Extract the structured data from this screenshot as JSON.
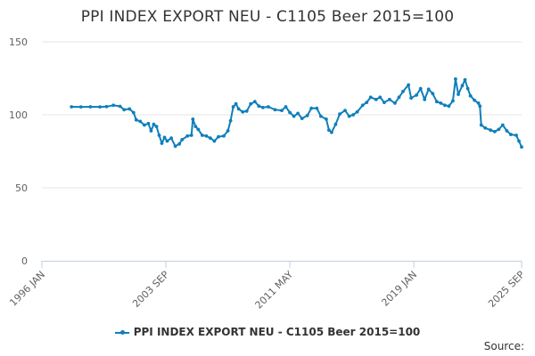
{
  "chart_data": {
    "type": "line",
    "title": "PPI INDEX EXPORT NEU - C1105 Beer 2015=100",
    "xlabel": "",
    "ylabel": "",
    "ylim": [
      0,
      150
    ],
    "yticks": [
      "0",
      "50",
      "100",
      "150"
    ],
    "xlim": [
      "1996-01",
      "2025-09"
    ],
    "xticks": [
      "1996 JAN",
      "2003 SEP",
      "2011 MAY",
      "2019 JAN",
      "2025 SEP"
    ],
    "grid": true,
    "legend_position": "bottom-center",
    "series": [
      {
        "name": "PPI INDEX EXPORT NEU - C1105 Beer 2015=100",
        "color": "#0f7fba",
        "points": [
          [
            "1997-11",
            105.5
          ],
          [
            "1998-06",
            105.4
          ],
          [
            "1999-01",
            105.5
          ],
          [
            "1999-08",
            105.4
          ],
          [
            "2000-01",
            105.6
          ],
          [
            "2000-06",
            106.5
          ],
          [
            "2000-11",
            105.8
          ],
          [
            "2001-02",
            103.5
          ],
          [
            "2001-06",
            104.0
          ],
          [
            "2001-09",
            101.5
          ],
          [
            "2001-11",
            96.5
          ],
          [
            "2002-02",
            95.5
          ],
          [
            "2002-05",
            93.0
          ],
          [
            "2002-08",
            94.0
          ],
          [
            "2002-10",
            89.0
          ],
          [
            "2002-12",
            93.5
          ],
          [
            "2003-02",
            92.0
          ],
          [
            "2003-04",
            86.0
          ],
          [
            "2003-06",
            80.5
          ],
          [
            "2003-08",
            84.5
          ],
          [
            "2003-10",
            82.0
          ],
          [
            "2004-01",
            84.0
          ],
          [
            "2004-04",
            78.5
          ],
          [
            "2004-07",
            80.0
          ],
          [
            "2004-09",
            83.0
          ],
          [
            "2005-01",
            85.5
          ],
          [
            "2005-04",
            86.0
          ],
          [
            "2005-05",
            97.0
          ],
          [
            "2005-07",
            92.0
          ],
          [
            "2005-09",
            90.0
          ],
          [
            "2005-12",
            86.0
          ],
          [
            "2006-03",
            85.5
          ],
          [
            "2006-06",
            84.0
          ],
          [
            "2006-09",
            82.0
          ],
          [
            "2006-12",
            85.0
          ],
          [
            "2007-04",
            85.5
          ],
          [
            "2007-07",
            89.0
          ],
          [
            "2007-09",
            96.0
          ],
          [
            "2007-11",
            105.5
          ],
          [
            "2008-01",
            107.5
          ],
          [
            "2008-03",
            104.0
          ],
          [
            "2008-06",
            102.0
          ],
          [
            "2008-09",
            102.5
          ],
          [
            "2008-12",
            107.5
          ],
          [
            "2009-03",
            109.0
          ],
          [
            "2009-06",
            106.0
          ],
          [
            "2009-09",
            105.0
          ],
          [
            "2010-01",
            105.5
          ],
          [
            "2010-06",
            103.5
          ],
          [
            "2010-11",
            103.0
          ],
          [
            "2011-02",
            105.5
          ],
          [
            "2011-05",
            101.5
          ],
          [
            "2011-08",
            99.0
          ],
          [
            "2011-11",
            101.0
          ],
          [
            "2012-02",
            97.5
          ],
          [
            "2012-06",
            99.5
          ],
          [
            "2012-09",
            104.5
          ],
          [
            "2013-01",
            104.5
          ],
          [
            "2013-04",
            99.0
          ],
          [
            "2013-08",
            97.0
          ],
          [
            "2013-10",
            89.5
          ],
          [
            "2013-12",
            88.0
          ],
          [
            "2014-03",
            93.5
          ],
          [
            "2014-06",
            100.5
          ],
          [
            "2014-10",
            103.0
          ],
          [
            "2015-01",
            99.0
          ],
          [
            "2015-04",
            100.0
          ],
          [
            "2015-07",
            102.0
          ],
          [
            "2015-11",
            106.5
          ],
          [
            "2016-02",
            108.5
          ],
          [
            "2016-05",
            112.0
          ],
          [
            "2016-09",
            110.5
          ],
          [
            "2016-12",
            112.0
          ],
          [
            "2017-03",
            108.5
          ],
          [
            "2017-07",
            110.5
          ],
          [
            "2017-11",
            108.0
          ],
          [
            "2018-02",
            112.0
          ],
          [
            "2018-05",
            116.0
          ],
          [
            "2018-09",
            120.5
          ],
          [
            "2018-11",
            111.5
          ],
          [
            "2019-03",
            113.5
          ],
          [
            "2019-06",
            118.0
          ],
          [
            "2019-09",
            110.5
          ],
          [
            "2019-12",
            117.5
          ],
          [
            "2020-03",
            114.5
          ],
          [
            "2020-06",
            109.0
          ],
          [
            "2020-09",
            108.0
          ],
          [
            "2020-12",
            106.5
          ],
          [
            "2021-03",
            106.0
          ],
          [
            "2021-06",
            109.5
          ],
          [
            "2021-08",
            124.5
          ],
          [
            "2021-10",
            114.0
          ],
          [
            "2022-01",
            120.0
          ],
          [
            "2022-03",
            124.0
          ],
          [
            "2022-05",
            118.0
          ],
          [
            "2022-07",
            113.0
          ],
          [
            "2022-10",
            110.0
          ],
          [
            "2023-01",
            108.0
          ],
          [
            "2023-02",
            106.0
          ],
          [
            "2023-03",
            93.0
          ],
          [
            "2023-06",
            91.0
          ],
          [
            "2023-10",
            89.5
          ],
          [
            "2024-01",
            88.5
          ],
          [
            "2024-04",
            90.0
          ],
          [
            "2024-07",
            93.0
          ],
          [
            "2024-10",
            89.0
          ],
          [
            "2025-01",
            86.5
          ],
          [
            "2025-05",
            86.0
          ],
          [
            "2025-07",
            82.0
          ],
          [
            "2025-09",
            78.0
          ]
        ]
      }
    ]
  },
  "credits": "Source:"
}
